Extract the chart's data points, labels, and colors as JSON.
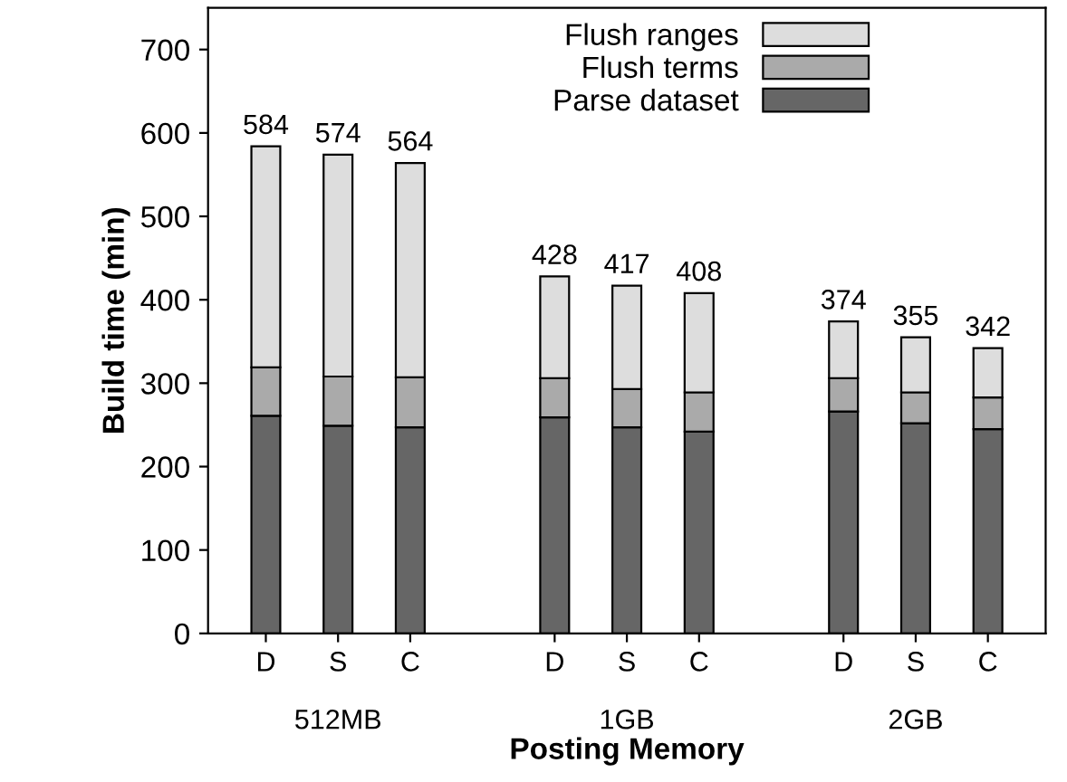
{
  "chart_data": {
    "type": "bar",
    "stacked": true,
    "xlabel": "Posting Memory",
    "ylabel": "Build time (min)",
    "categories": [
      "D",
      "S",
      "C",
      null,
      "D",
      "S",
      "C",
      null,
      "D",
      "S",
      "C"
    ],
    "series": [
      {
        "name": "Parse dataset",
        "color": "#666666",
        "values": [
          261,
          249,
          247,
          null,
          259,
          247,
          242,
          null,
          266,
          252,
          245
        ]
      },
      {
        "name": "Flush terms",
        "color": "#aaaaaa",
        "values": [
          58,
          59,
          60,
          null,
          47,
          46,
          47,
          null,
          40,
          37,
          38
        ]
      },
      {
        "name": "Flush ranges",
        "color": "#dddddd",
        "values": [
          265,
          266,
          257,
          null,
          122,
          124,
          119,
          null,
          68,
          66,
          59
        ]
      }
    ],
    "totals": [
      "584",
      "574",
      "564",
      null,
      "428",
      "417",
      "408",
      null,
      "374",
      "355",
      "342"
    ],
    "annotations": [
      "512MB",
      "1GB",
      "2GB"
    ],
    "ylim": [
      0,
      750
    ],
    "yticks": [
      0,
      100,
      200,
      300,
      400,
      500,
      600,
      700
    ],
    "grid": false,
    "legend": "top"
  }
}
